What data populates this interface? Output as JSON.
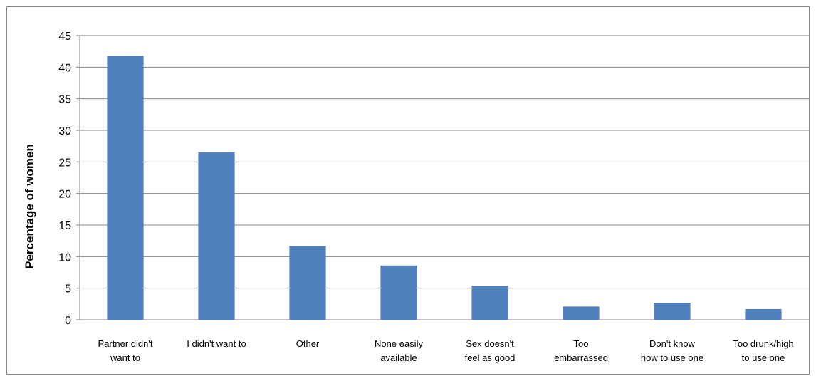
{
  "chart_data": {
    "type": "bar",
    "title": "",
    "xlabel": "",
    "ylabel": "Percentage of women",
    "ylim": [
      0,
      45
    ],
    "ytick_step": 5,
    "yticks": [
      "0",
      "5",
      "10",
      "15",
      "20",
      "25",
      "30",
      "35",
      "40",
      "45"
    ],
    "grid": true,
    "legend": "none",
    "bar_color": "#4F81BD",
    "categories": [
      [
        "Partner didn't",
        "want to"
      ],
      [
        "I didn't want to"
      ],
      [
        "Other"
      ],
      [
        "None easily",
        "available"
      ],
      [
        "Sex doesn't",
        "feel as good"
      ],
      [
        "Too",
        "embarrassed"
      ],
      [
        "Don't know",
        "how to use one"
      ],
      [
        "Too drunk/high",
        "to use one"
      ]
    ],
    "values": [
      41.8,
      26.6,
      11.7,
      8.6,
      5.4,
      2.1,
      2.7,
      1.7
    ]
  }
}
